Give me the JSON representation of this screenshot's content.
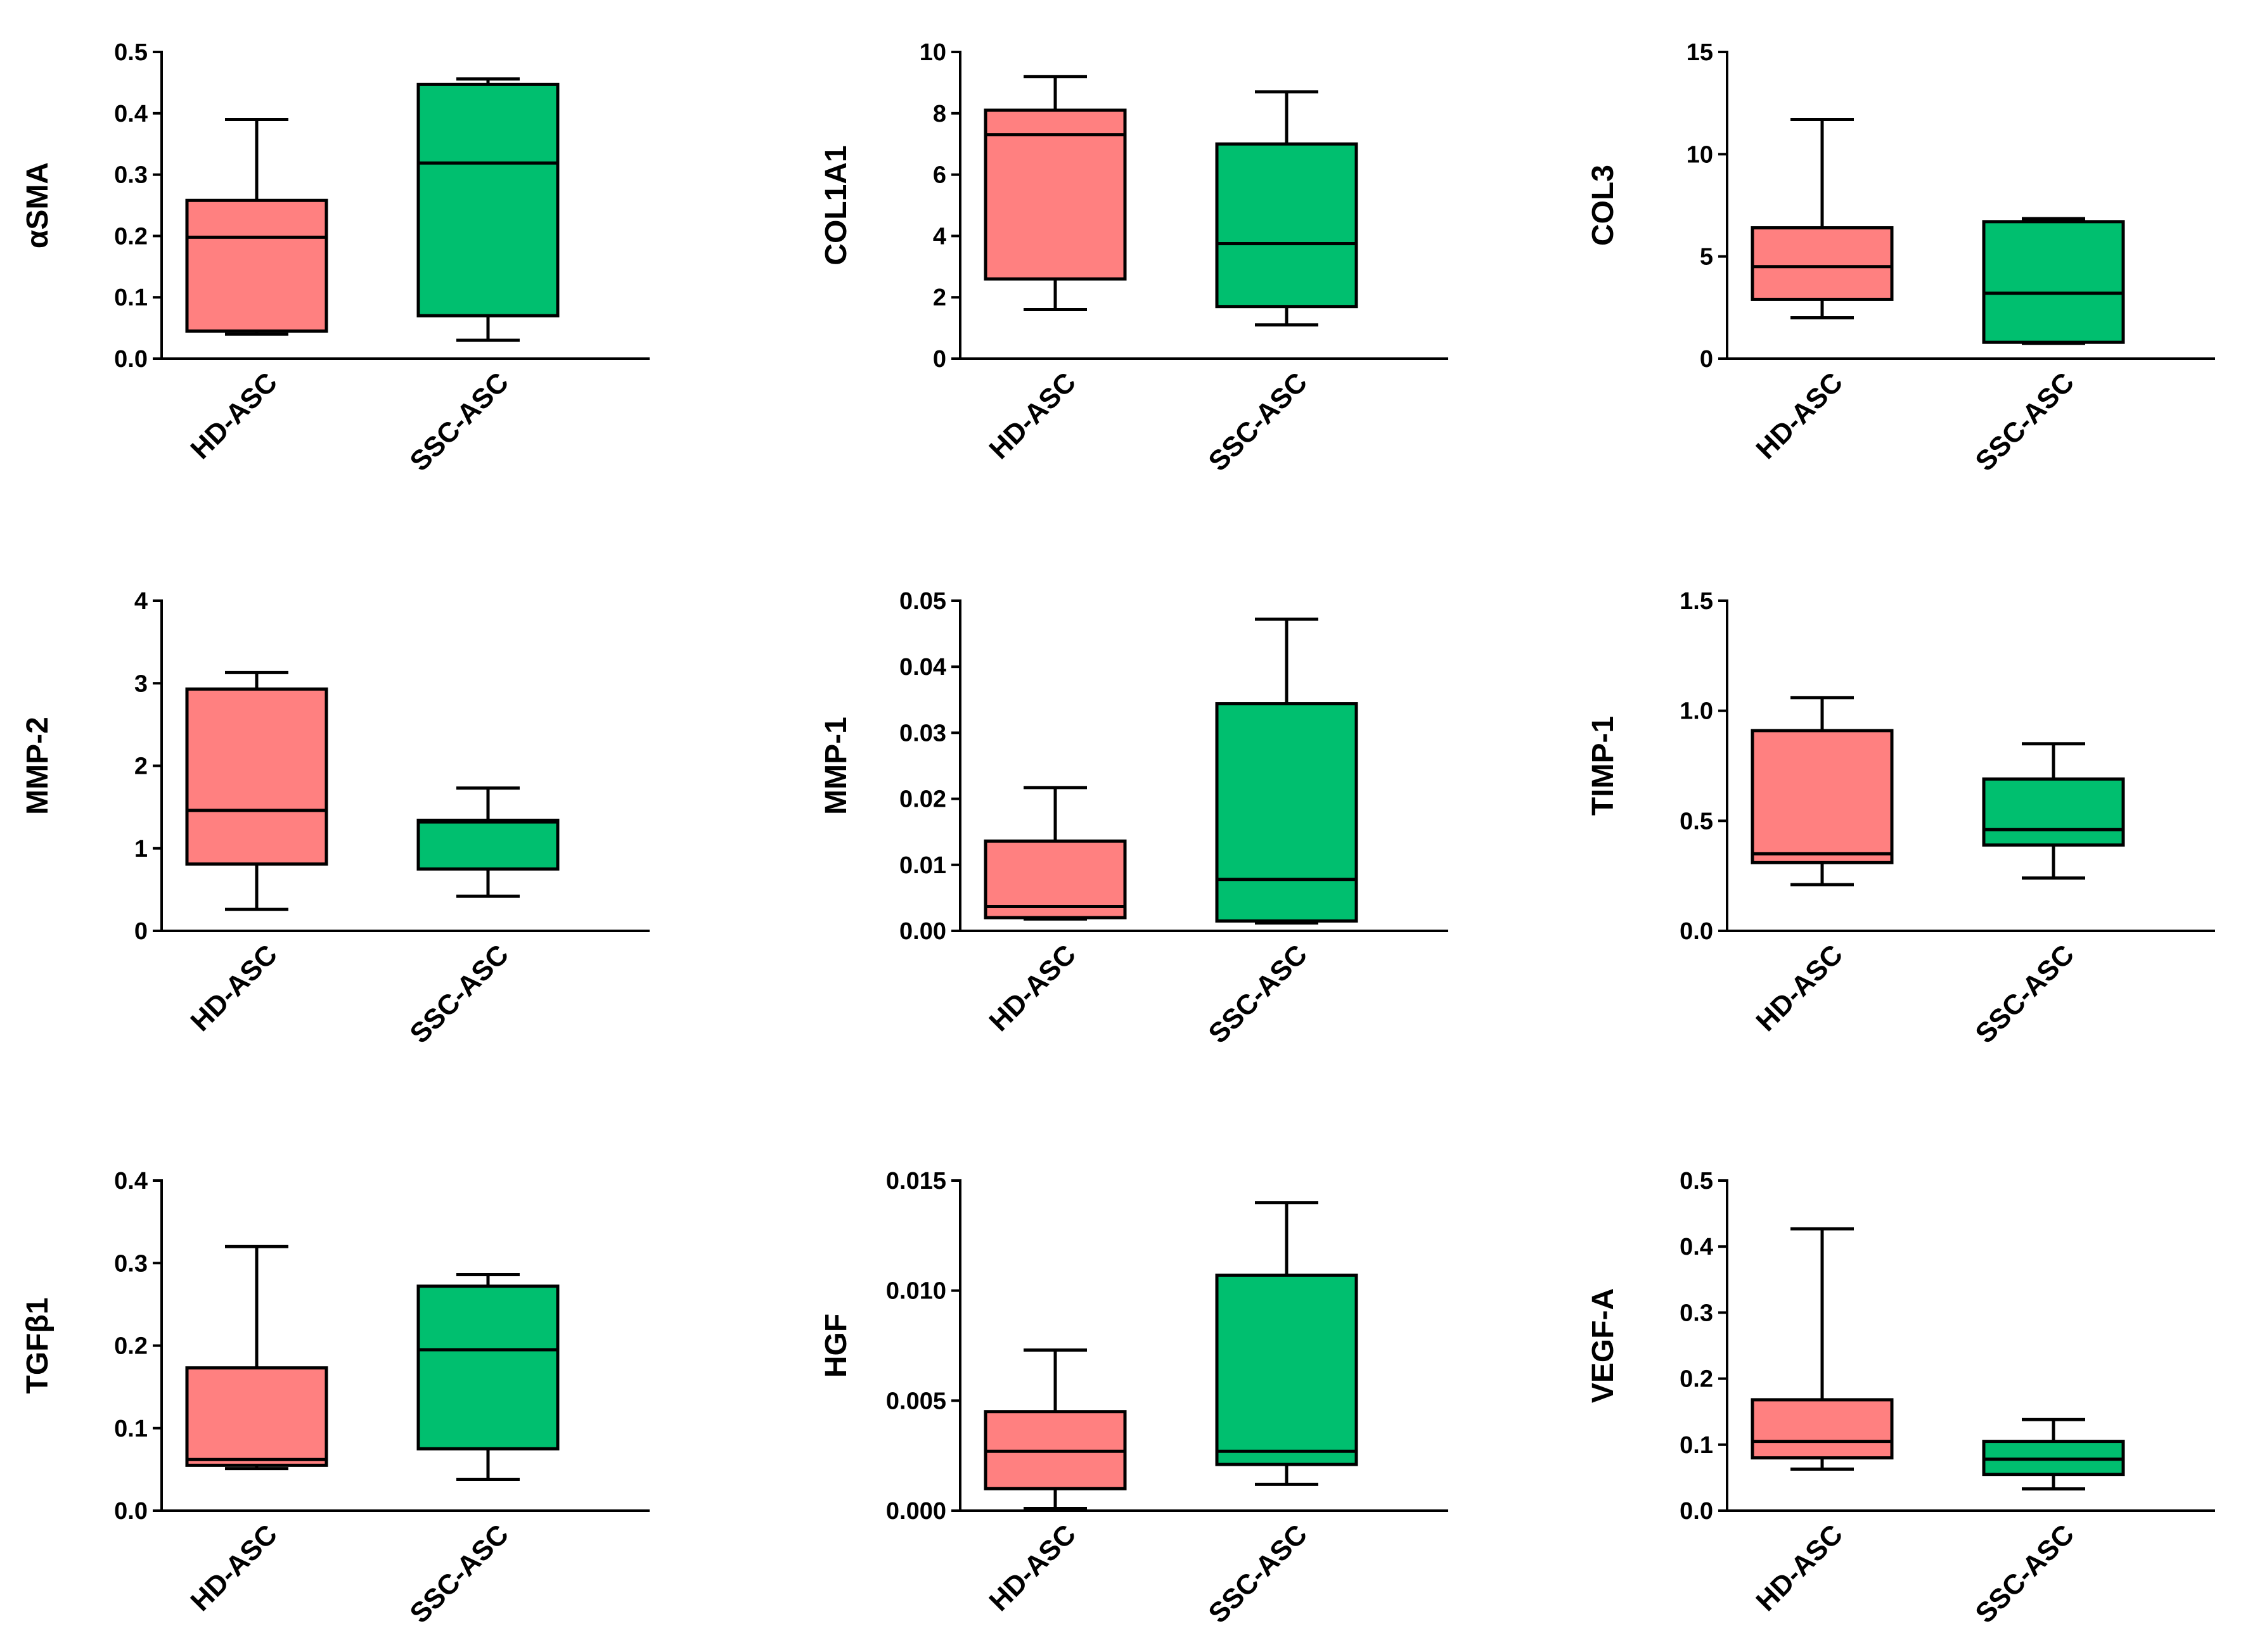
{
  "colors": {
    "HD-ASC": "#ff8080",
    "SSC-ASC": "#00bf6f",
    "axis": "#000000"
  },
  "chart_data": [
    {
      "type": "box",
      "ylabel": "αSMA",
      "ylim": [
        0,
        0.5
      ],
      "yticks": [
        "0.0",
        "0.1",
        "0.2",
        "0.3",
        "0.4",
        "0.5"
      ],
      "categories": [
        "HD-ASC",
        "SSC-ASC"
      ],
      "boxes": [
        {
          "group": "HD-ASC",
          "min": 0.04,
          "q1": 0.045,
          "median": 0.198,
          "q3": 0.258,
          "max": 0.39
        },
        {
          "group": "SSC-ASC",
          "min": 0.03,
          "q1": 0.07,
          "median": 0.319,
          "q3": 0.447,
          "max": 0.456
        }
      ]
    },
    {
      "type": "box",
      "ylabel": "COL1A1",
      "ylim": [
        0,
        10
      ],
      "yticks": [
        "0",
        "2",
        "4",
        "6",
        "8",
        "10"
      ],
      "categories": [
        "HD-ASC",
        "SSC-ASC"
      ],
      "boxes": [
        {
          "group": "HD-ASC",
          "min": 1.6,
          "q1": 2.6,
          "median": 7.3,
          "q3": 8.1,
          "max": 9.2
        },
        {
          "group": "SSC-ASC",
          "min": 1.1,
          "q1": 1.7,
          "median": 3.75,
          "q3": 7.0,
          "max": 8.7
        }
      ]
    },
    {
      "type": "box",
      "ylabel": "COL3",
      "ylim": [
        0,
        15
      ],
      "yticks": [
        "0",
        "5",
        "10",
        "15"
      ],
      "categories": [
        "HD-ASC",
        "SSC-ASC"
      ],
      "boxes": [
        {
          "group": "HD-ASC",
          "min": 2.0,
          "q1": 2.9,
          "median": 4.5,
          "q3": 6.4,
          "max": 11.7
        },
        {
          "group": "SSC-ASC",
          "min": 0.75,
          "q1": 0.8,
          "median": 3.2,
          "q3": 6.7,
          "max": 6.85
        }
      ]
    },
    {
      "type": "box",
      "ylabel": "MMP-2",
      "ylim": [
        0,
        4
      ],
      "yticks": [
        "0",
        "1",
        "2",
        "3",
        "4"
      ],
      "categories": [
        "HD-ASC",
        "SSC-ASC"
      ],
      "boxes": [
        {
          "group": "HD-ASC",
          "min": 0.26,
          "q1": 0.81,
          "median": 1.46,
          "q3": 2.93,
          "max": 3.13
        },
        {
          "group": "SSC-ASC",
          "min": 0.42,
          "q1": 0.75,
          "median": 1.32,
          "q3": 1.34,
          "max": 1.73
        }
      ]
    },
    {
      "type": "box",
      "ylabel": "MMP-1",
      "ylim": [
        0,
        0.05
      ],
      "yticks": [
        "0.00",
        "0.01",
        "0.02",
        "0.03",
        "0.04",
        "0.05"
      ],
      "categories": [
        "HD-ASC",
        "SSC-ASC"
      ],
      "boxes": [
        {
          "group": "HD-ASC",
          "min": 0.0018,
          "q1": 0.002,
          "median": 0.0037,
          "q3": 0.0136,
          "max": 0.0217
        },
        {
          "group": "SSC-ASC",
          "min": 0.0012,
          "q1": 0.0015,
          "median": 0.0078,
          "q3": 0.0344,
          "max": 0.0472
        }
      ]
    },
    {
      "type": "box",
      "ylabel": "TIMP-1",
      "ylim": [
        0,
        1.5
      ],
      "yticks": [
        "0.0",
        "0.5",
        "1.0",
        "1.5"
      ],
      "categories": [
        "HD-ASC",
        "SSC-ASC"
      ],
      "boxes": [
        {
          "group": "HD-ASC",
          "min": 0.21,
          "q1": 0.31,
          "median": 0.35,
          "q3": 0.91,
          "max": 1.06
        },
        {
          "group": "SSC-ASC",
          "min": 0.24,
          "q1": 0.39,
          "median": 0.46,
          "q3": 0.69,
          "max": 0.85
        }
      ]
    },
    {
      "type": "box",
      "ylabel": "TGFβ1",
      "ylim": [
        0,
        0.4
      ],
      "yticks": [
        "0.0",
        "0.1",
        "0.2",
        "0.3",
        "0.4"
      ],
      "categories": [
        "HD-ASC",
        "SSC-ASC"
      ],
      "boxes": [
        {
          "group": "HD-ASC",
          "min": 0.051,
          "q1": 0.055,
          "median": 0.062,
          "q3": 0.173,
          "max": 0.32
        },
        {
          "group": "SSC-ASC",
          "min": 0.038,
          "q1": 0.075,
          "median": 0.195,
          "q3": 0.272,
          "max": 0.286
        }
      ]
    },
    {
      "type": "box",
      "ylabel": "HGF",
      "ylim": [
        0,
        0.015
      ],
      "yticks": [
        "0.000",
        "0.005",
        "0.010",
        "0.015"
      ],
      "categories": [
        "HD-ASC",
        "SSC-ASC"
      ],
      "boxes": [
        {
          "group": "HD-ASC",
          "min": 0.0001,
          "q1": 0.001,
          "median": 0.0027,
          "q3": 0.0045,
          "max": 0.0073
        },
        {
          "group": "SSC-ASC",
          "min": 0.0012,
          "q1": 0.0021,
          "median": 0.0027,
          "q3": 0.0107,
          "max": 0.014
        }
      ]
    },
    {
      "type": "box",
      "ylabel": "VEGF-A",
      "ylim": [
        0,
        0.5
      ],
      "yticks": [
        "0.0",
        "0.1",
        "0.2",
        "0.3",
        "0.4",
        "0.5"
      ],
      "categories": [
        "HD-ASC",
        "SSC-ASC"
      ],
      "boxes": [
        {
          "group": "HD-ASC",
          "min": 0.063,
          "q1": 0.08,
          "median": 0.105,
          "q3": 0.168,
          "max": 0.427
        },
        {
          "group": "SSC-ASC",
          "min": 0.033,
          "q1": 0.055,
          "median": 0.078,
          "q3": 0.105,
          "max": 0.138
        }
      ]
    }
  ]
}
